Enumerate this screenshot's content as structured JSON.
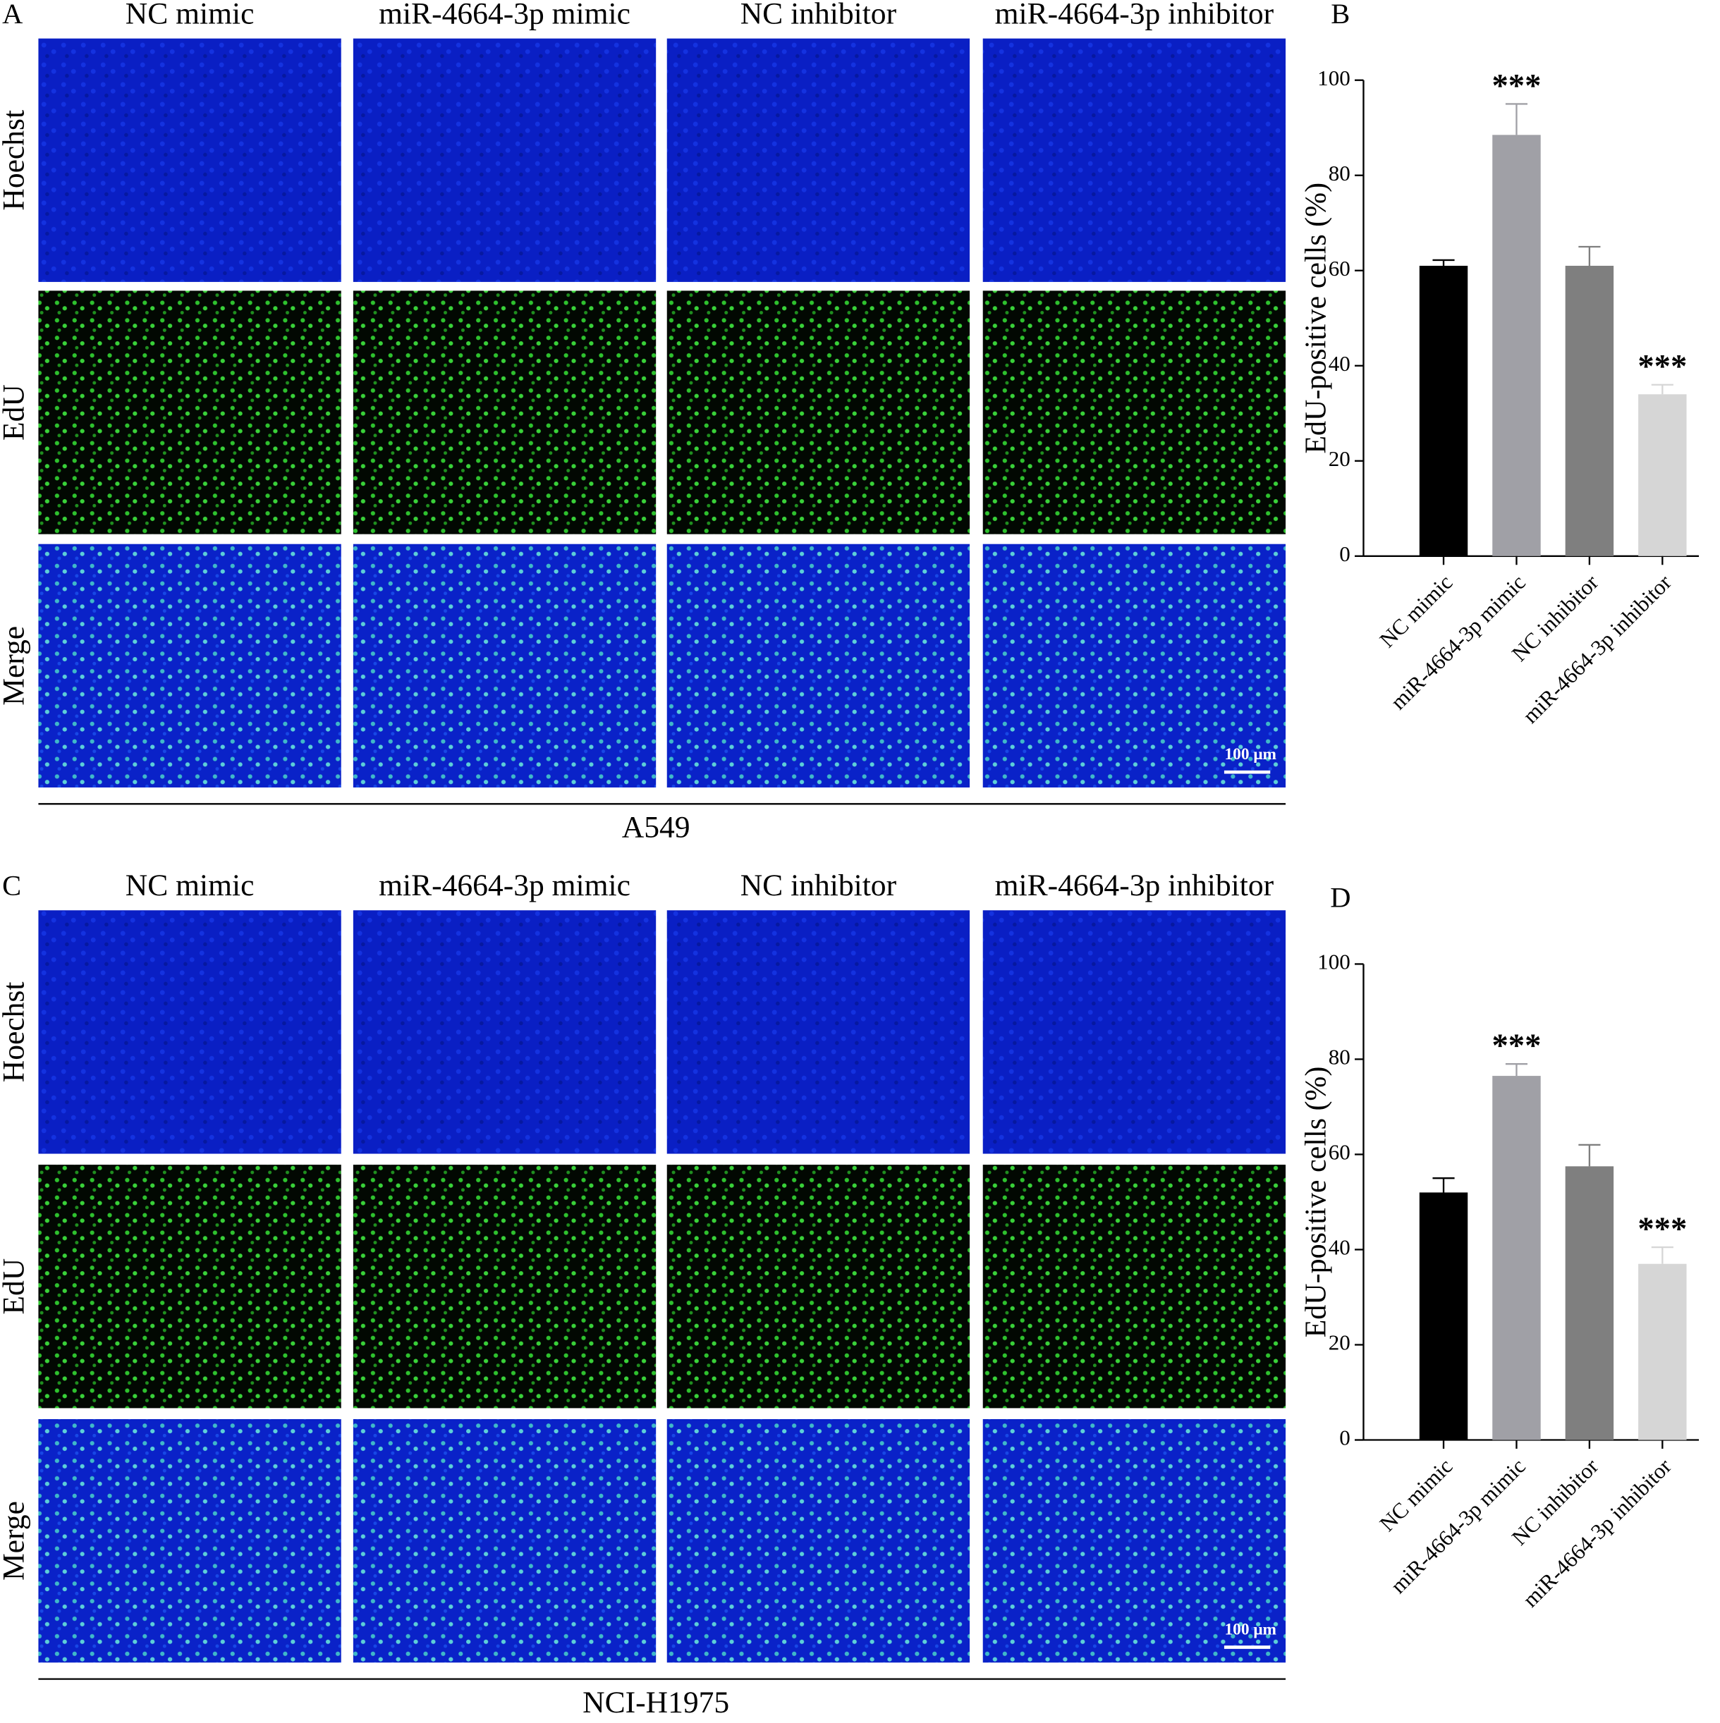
{
  "microscopy": [
    {
      "panel": "A",
      "columns": [
        "NC mimic",
        "miR-4664-3p mimic",
        "NC inhibitor",
        "miR-4664-3p inhibitor"
      ],
      "rows": [
        "Hoechst",
        "EdU",
        "Merge"
      ],
      "scale_bar": "100 μm",
      "cell_line": "A549"
    },
    {
      "panel": "C",
      "columns": [
        "NC mimic",
        "miR-4664-3p mimic",
        "NC inhibitor",
        "miR-4664-3p inhibitor"
      ],
      "rows": [
        "Hoechst",
        "EdU",
        "Merge"
      ],
      "scale_bar": "100 μm",
      "cell_line": "NCI-H1975"
    }
  ],
  "chart_data": [
    {
      "type": "bar",
      "panel": "B",
      "ylabel": "EdU-positive cells (%)",
      "categories": [
        "NC mimic",
        "miR-4664-3p mimic",
        "NC inhibitor",
        "miR-4664-3p inhibitor"
      ],
      "values": [
        61,
        88.5,
        61,
        34
      ],
      "errors": [
        1.2,
        6.5,
        4,
        2
      ],
      "colors": [
        "#000000",
        "#a0a0a6",
        "#7f7f7f",
        "#d6d6d6"
      ],
      "annotations": [
        null,
        "***",
        null,
        "***"
      ],
      "ylim": [
        0,
        100
      ],
      "yticks": [
        0,
        20,
        40,
        60,
        80,
        100
      ]
    },
    {
      "type": "bar",
      "panel": "D",
      "ylabel": "EdU-positive cells (%)",
      "categories": [
        "NC mimic",
        "miR-4664-3p mimic",
        "NC inhibitor",
        "miR-4664-3p inhibitor"
      ],
      "values": [
        52,
        76.5,
        57.5,
        37
      ],
      "errors": [
        3,
        2.5,
        4.5,
        3.5
      ],
      "colors": [
        "#000000",
        "#a0a0a6",
        "#7f7f7f",
        "#d6d6d6"
      ],
      "annotations": [
        null,
        "***",
        null,
        "***"
      ],
      "ylim": [
        0,
        100
      ],
      "yticks": [
        0,
        20,
        40,
        60,
        80,
        100
      ]
    }
  ]
}
